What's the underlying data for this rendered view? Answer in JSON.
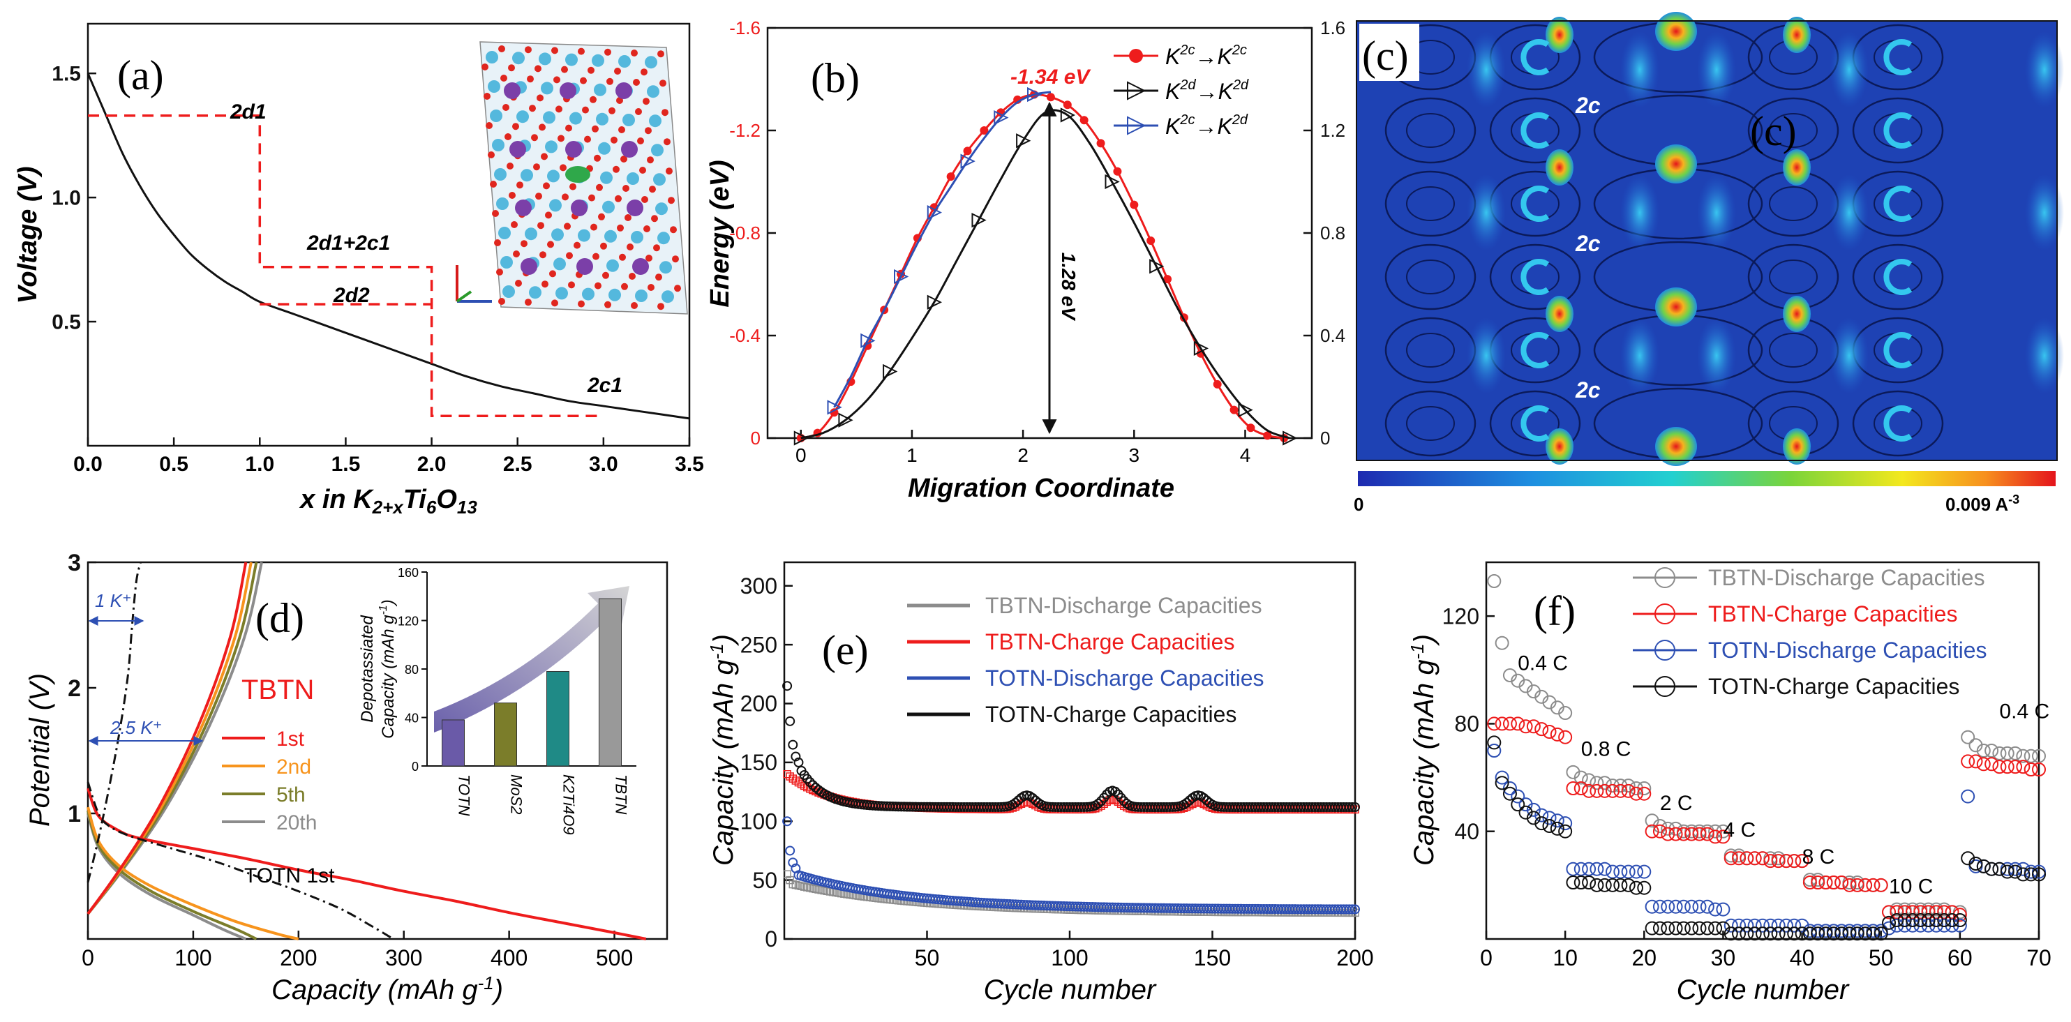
{
  "colors": {
    "red": "#ee1c1c",
    "black": "#111111",
    "blue": "#2d4fb3",
    "gray": "#8c8c8c",
    "orange": "#f7941d",
    "olive": "#7b7d2a",
    "teal": "#1f8a86",
    "purple": "#6a5aa8",
    "mapbg": "#1e42b4"
  },
  "chart_data": [
    {
      "panel": "a",
      "type": "line",
      "label": "(a)",
      "xlabel": "x in K2+xTi6O13",
      "xlabel_main": "x in K",
      "xlabel_sub1": "2+x",
      "xlabel_mid": "Ti",
      "xlabel_sub2": "6",
      "xlabel_mid2": "O",
      "xlabel_sub3": "13",
      "ylabel": "Voltage (V)",
      "xlim": [
        0,
        3.5
      ],
      "ylim": [
        0,
        1.7
      ],
      "xticks": [
        "0.0",
        "0.5",
        "1.0",
        "1.5",
        "2.0",
        "2.5",
        "3.0",
        "3.5"
      ],
      "yticks": [
        "0.5",
        "1.0",
        "1.5"
      ],
      "curve": {
        "x": [
          0,
          0.05,
          0.1,
          0.2,
          0.3,
          0.4,
          0.5,
          0.6,
          0.7,
          0.8,
          0.9,
          1.0,
          1.2,
          1.4,
          1.6,
          1.8,
          2.0,
          2.2,
          2.4,
          2.6,
          2.8,
          3.0,
          3.2,
          3.5
        ],
        "y": [
          1.5,
          1.42,
          1.34,
          1.18,
          1.05,
          0.94,
          0.85,
          0.77,
          0.71,
          0.66,
          0.62,
          0.58,
          0.53,
          0.48,
          0.43,
          0.38,
          0.33,
          0.28,
          0.24,
          0.21,
          0.18,
          0.16,
          0.14,
          0.11
        ]
      },
      "steps": {
        "x": [
          0,
          1.0,
          1.0,
          2.0,
          2.0,
          3.0
        ],
        "y": [
          1.33,
          1.33,
          0.72,
          0.72,
          0.12,
          0.12
        ]
      },
      "step2d2": {
        "x": [
          1.0,
          2.0
        ],
        "y": [
          0.57,
          0.57
        ]
      },
      "annotations": [
        "2d1",
        "2d1+2c1",
        "2d2",
        "2c1"
      ]
    },
    {
      "panel": "b",
      "type": "line",
      "label": "(b)",
      "xlabel": "Migration Coordinate",
      "ylabel": "Energy (eV)",
      "xlim": [
        -0.3,
        4.6
      ],
      "ylim": [
        0,
        1.6
      ],
      "xticks": [
        "0",
        "1",
        "2",
        "3",
        "4"
      ],
      "yticks_left": [
        "0",
        "-0.4",
        "-0.8",
        "-1.2",
        "-1.6"
      ],
      "yticks_right": [
        "0",
        "0.4",
        "0.8",
        "1.2",
        "1.6"
      ],
      "series": [
        {
          "name": "K2c→K2c",
          "name_main": "K",
          "sup1": "2c",
          "arrow": "→",
          "name_main2": "K",
          "sup2": "2c",
          "color": "#ee1c1c",
          "x": [
            0,
            0.15,
            0.3,
            0.45,
            0.6,
            0.75,
            0.9,
            1.05,
            1.2,
            1.35,
            1.5,
            1.65,
            1.8,
            1.95,
            2.1,
            2.25,
            2.4,
            2.55,
            2.7,
            2.85,
            3.0,
            3.15,
            3.3,
            3.45,
            3.6,
            3.75,
            3.9,
            4.05,
            4.2,
            4.35
          ],
          "y": [
            0,
            0.02,
            0.1,
            0.22,
            0.36,
            0.5,
            0.64,
            0.78,
            0.9,
            1.02,
            1.12,
            1.2,
            1.27,
            1.32,
            1.34,
            1.33,
            1.3,
            1.24,
            1.15,
            1.04,
            0.91,
            0.77,
            0.62,
            0.47,
            0.33,
            0.21,
            0.11,
            0.04,
            0.01,
            0
          ]
        },
        {
          "name": "K2d→K2d",
          "name_main": "K",
          "sup1": "2d",
          "arrow": "→",
          "name_main2": "K",
          "sup2": "2d",
          "color": "#111111",
          "x": [
            0,
            0.2,
            0.4,
            0.6,
            0.8,
            1.0,
            1.2,
            1.4,
            1.6,
            1.8,
            2.0,
            2.2,
            2.4,
            2.6,
            2.8,
            3.0,
            3.2,
            3.4,
            3.6,
            3.8,
            4.0,
            4.2,
            4.4
          ],
          "y": [
            0,
            0.02,
            0.07,
            0.15,
            0.26,
            0.39,
            0.53,
            0.69,
            0.85,
            1.01,
            1.16,
            1.27,
            1.26,
            1.15,
            1.0,
            0.84,
            0.67,
            0.5,
            0.35,
            0.22,
            0.11,
            0.03,
            0
          ]
        },
        {
          "name": "K2c→K2d",
          "name_main": "K",
          "sup1": "2c",
          "arrow": "→",
          "name_main2": "K",
          "sup2": "2d",
          "color": "#2d4fb3",
          "x": [
            0.3,
            0.45,
            0.6,
            0.75,
            0.9,
            1.05,
            1.2,
            1.35,
            1.5,
            1.65,
            1.8,
            1.95,
            2.1,
            2.25
          ],
          "y": [
            0.12,
            0.24,
            0.38,
            0.5,
            0.63,
            0.76,
            0.88,
            0.98,
            1.08,
            1.17,
            1.25,
            1.31,
            1.34,
            1.35
          ]
        }
      ],
      "peak_label": "-1.34 eV",
      "barrier_label": "1.28 eV"
    },
    {
      "panel": "c",
      "type": "heatmap",
      "label": "(c)",
      "label_dup": "(c)",
      "site_labels": [
        "2c",
        "2c",
        "2c"
      ],
      "colorbar_min": "0",
      "colorbar_max": "0.009 A",
      "colorbar_max_sup": "-3"
    },
    {
      "panel": "d",
      "type": "line",
      "label": "(d)",
      "xlabel": "Capacity (mAh g-1)",
      "ylabel": "Potential  (V)",
      "xlim": [
        0,
        550
      ],
      "ylim": [
        0,
        3
      ],
      "xticks": [
        "0",
        "100",
        "200",
        "300",
        "400",
        "500"
      ],
      "yticks": [
        "1",
        "2",
        "3"
      ],
      "legend_title": "TBTN",
      "series": [
        {
          "name": "1st",
          "color": "#ee1c1c",
          "discharge": {
            "x": [
              0,
              10,
              30,
              50,
              100,
              150,
              200,
              250,
              300,
              350,
              400,
              450,
              500,
              530
            ],
            "y": [
              1.2,
              0.98,
              0.86,
              0.8,
              0.72,
              0.64,
              0.55,
              0.47,
              0.38,
              0.3,
              0.21,
              0.13,
              0.05,
              0
            ]
          }
        },
        {
          "name": "2nd",
          "color": "#f7941d",
          "discharge": {
            "x": [
              0,
              10,
              30,
              60,
              100,
              140,
              180,
              200
            ],
            "y": [
              1.05,
              0.78,
              0.58,
              0.42,
              0.27,
              0.14,
              0.04,
              0
            ]
          }
        },
        {
          "name": "5th",
          "color": "#7b7d2a",
          "discharge": {
            "x": [
              0,
              10,
              30,
              60,
              100,
              140,
              160
            ],
            "y": [
              1.02,
              0.75,
              0.55,
              0.38,
              0.22,
              0.08,
              0
            ]
          }
        },
        {
          "name": "20th",
          "color": "#8c8c8c",
          "discharge": {
            "x": [
              0,
              10,
              30,
              60,
              100,
              130,
              150
            ],
            "y": [
              1.0,
              0.73,
              0.52,
              0.35,
              0.19,
              0.07,
              0
            ]
          }
        }
      ],
      "totn_label": "TOTN 1st",
      "totn_discharge": {
        "x": [
          0,
          10,
          20,
          40,
          80,
          120,
          160,
          200,
          240,
          270,
          290
        ],
        "y": [
          1.25,
          1.0,
          0.9,
          0.82,
          0.72,
          0.62,
          0.5,
          0.38,
          0.24,
          0.1,
          0
        ]
      },
      "totn_charge": {
        "x": [
          0,
          10,
          20,
          30,
          38,
          42,
          46,
          50
        ],
        "y": [
          0.45,
          0.8,
          1.2,
          1.65,
          2.1,
          2.5,
          2.85,
          3.0
        ]
      },
      "arrow_1k": "1 K⁺",
      "arrow_25k": "2.5 K⁺",
      "inset": {
        "ylabel1": "Depotassiated",
        "ylabel2": "Capacity (mAh g",
        "ylabel2_sup": "-1",
        "ylabel2_end": ")",
        "ylim": [
          0,
          160
        ],
        "yticks": [
          "0",
          "40",
          "80",
          "120",
          "160"
        ],
        "categories": [
          "TOTN",
          "MoS2",
          "K2Ti4O9",
          "TBTN"
        ],
        "values": [
          38,
          52,
          78,
          138
        ],
        "bar_colors": [
          "#6a5aa8",
          "#7b7d2a",
          "#1f8a86",
          "#999999"
        ]
      }
    },
    {
      "panel": "e",
      "type": "scatter",
      "label": "(e)",
      "xlabel": "Cycle number",
      "ylabel": "Capacity (mAh g-1)",
      "xlim": [
        0,
        200
      ],
      "ylim": [
        0,
        320
      ],
      "xticks": [
        "50",
        "100",
        "150",
        "200"
      ],
      "yticks": [
        "0",
        "50",
        "100",
        "150",
        "200",
        "250",
        "300"
      ],
      "series": [
        {
          "name": "TBTN-Discharge Capacities",
          "color": "#8c8c8c"
        },
        {
          "name": "TBTN-Charge Capacities",
          "color": "#ee1c1c"
        },
        {
          "name": "TOTN-Discharge Capacities",
          "color": "#2d4fb3"
        },
        {
          "name": "TOTN-Charge Capacities",
          "color": "#111111"
        }
      ],
      "totn_charge_start": [
        215,
        185,
        165,
        155,
        150
      ],
      "totn_charge_plateau": 112,
      "tbtn_charge_start": 140,
      "tbtn_charge_plateau": 110,
      "totn_discharge_start": [
        100,
        75,
        65,
        60
      ],
      "totn_discharge_end": 25,
      "tbtn_discharge_start": [
        55,
        50
      ],
      "tbtn_discharge_end": 22
    },
    {
      "panel": "f",
      "type": "scatter",
      "label": "(f)",
      "xlabel": "Cycle number",
      "ylabel": "Capacity (mAh g-1)",
      "xlim": [
        0,
        70
      ],
      "ylim": [
        0,
        140
      ],
      "xticks": [
        "0",
        "10",
        "20",
        "30",
        "40",
        "50",
        "60",
        "70"
      ],
      "yticks": [
        "40",
        "80",
        "120"
      ],
      "series": [
        {
          "name": "TBTN-Discharge Capacities",
          "color": "#8c8c8c"
        },
        {
          "name": "TBTN-Charge Capacities",
          "color": "#ee1c1c"
        },
        {
          "name": "TOTN-Discharge Capacities",
          "color": "#2d4fb3"
        },
        {
          "name": "TOTN-Charge Capacities",
          "color": "#111111"
        }
      ],
      "rates": [
        "0.4 C",
        "0.8 C",
        "2 C",
        "4 C",
        "8 C",
        "10 C",
        "0.4 C"
      ],
      "tbtn_dis": [
        133,
        110,
        98,
        96,
        94,
        92,
        90,
        88,
        86,
        84,
        62,
        60,
        59,
        58,
        58,
        57,
        57,
        57,
        56,
        56,
        44,
        42,
        41,
        41,
        40,
        40,
        40,
        40,
        40,
        40,
        31,
        31,
        30,
        30,
        30,
        30,
        30,
        29,
        29,
        29,
        22,
        22,
        21,
        21,
        21,
        21,
        21,
        20,
        20,
        20,
        10,
        11,
        11,
        11,
        11,
        11,
        11,
        11,
        10,
        10,
        75,
        72,
        70,
        70,
        69,
        69,
        69,
        68,
        68,
        68
      ],
      "tbtn_ch": [
        80,
        80,
        80,
        80,
        79,
        79,
        78,
        77,
        76,
        75,
        56,
        56,
        55,
        55,
        55,
        55,
        55,
        55,
        54,
        54,
        40,
        40,
        39,
        39,
        39,
        39,
        39,
        39,
        38,
        38,
        30,
        30,
        30,
        30,
        30,
        29,
        29,
        29,
        29,
        29,
        21,
        21,
        21,
        21,
        21,
        20,
        20,
        20,
        20,
        20,
        10,
        10,
        10,
        10,
        10,
        10,
        10,
        10,
        10,
        9,
        66,
        66,
        65,
        65,
        64,
        64,
        64,
        64,
        63,
        63
      ],
      "totn_dis": [
        70,
        60,
        56,
        53,
        50,
        48,
        46,
        45,
        44,
        43,
        26,
        26,
        26,
        26,
        26,
        25,
        25,
        25,
        25,
        25,
        12,
        12,
        12,
        12,
        12,
        12,
        12,
        12,
        11,
        11,
        5,
        5,
        5,
        5,
        5,
        5,
        5,
        5,
        5,
        5,
        3,
        3,
        3,
        3,
        3,
        3,
        3,
        3,
        3,
        3,
        4,
        5,
        5,
        5,
        5,
        5,
        5,
        5,
        5,
        5,
        53,
        27,
        27,
        26,
        26,
        26,
        26,
        26,
        25,
        25
      ],
      "totn_ch": [
        73,
        58,
        54,
        50,
        47,
        45,
        43,
        42,
        41,
        40,
        21,
        21,
        21,
        20,
        20,
        20,
        20,
        20,
        19,
        19,
        4,
        4,
        4,
        4,
        4,
        4,
        4,
        4,
        4,
        4,
        2,
        2,
        2,
        2,
        2,
        2,
        2,
        2,
        2,
        2,
        2,
        2,
        2,
        2,
        2,
        2,
        2,
        2,
        2,
        2,
        6,
        7,
        7,
        7,
        7,
        7,
        7,
        7,
        7,
        7,
        30,
        28,
        27,
        26,
        26,
        25,
        25,
        24,
        24,
        24
      ]
    }
  ]
}
